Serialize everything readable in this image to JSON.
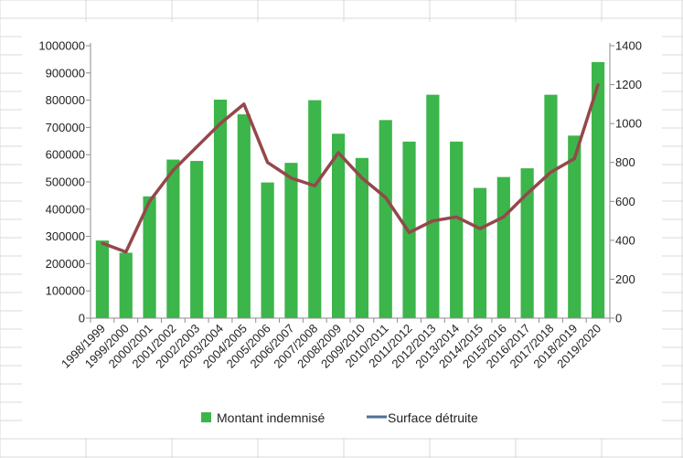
{
  "chart_data": {
    "type": "bar",
    "categories": [
      "1998/1999",
      "1999/2000",
      "2000/2001",
      "2001/2002",
      "2002/2003",
      "2003/2004",
      "2004/2005",
      "2005/2006",
      "2006/2007",
      "2007/2008",
      "2008/2009",
      "2009/2010",
      "2010/2011",
      "2011/2012",
      "2012/2013",
      "2013/2014",
      "2014/2015",
      "2015/2016",
      "2016/2017",
      "2017/2018",
      "2018/2019",
      "2019/2020"
    ],
    "series": [
      {
        "name": "Montant indemnisé",
        "type": "bar",
        "axis": "left",
        "color": "#3CB54A",
        "values": [
          285000,
          240000,
          447000,
          582000,
          577000,
          802000,
          748000,
          498000,
          570000,
          800000,
          677000,
          588000,
          727000,
          648000,
          820000,
          648000,
          478000,
          518000,
          550000,
          820000,
          670000,
          940000
        ]
      },
      {
        "name": "Surface détruite",
        "type": "line",
        "axis": "right",
        "color": "#94484A",
        "legend_color": "#4F6E9A",
        "values": [
          385,
          340,
          600,
          760,
          880,
          1000,
          1100,
          800,
          720,
          680,
          850,
          720,
          620,
          440,
          500,
          520,
          460,
          520,
          640,
          750,
          820,
          1200
        ]
      }
    ],
    "y_left": {
      "min": 0,
      "max": 1000000,
      "ticks": [
        "0",
        "100000",
        "200000",
        "300000",
        "400000",
        "500000",
        "600000",
        "700000",
        "800000",
        "900000",
        "1000000"
      ]
    },
    "y_right": {
      "min": 0,
      "max": 1400,
      "ticks": [
        "0",
        "200",
        "400",
        "600",
        "800",
        "1000",
        "1200",
        "1400"
      ]
    },
    "title": "",
    "xlabel": "",
    "ylabel": "",
    "grid": false,
    "legend_position": "bottom"
  }
}
